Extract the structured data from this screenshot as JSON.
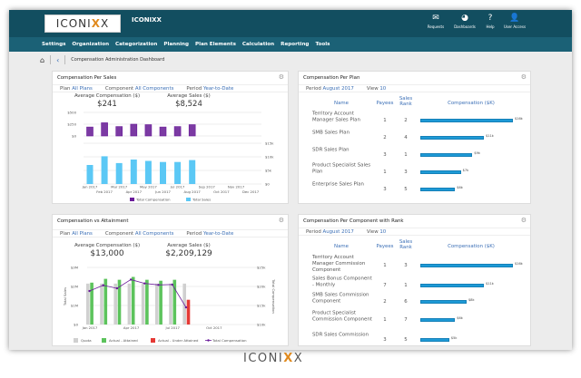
{
  "header": {
    "logo_text": "ICONIXX",
    "app_title": "ICONIXX",
    "icons": [
      {
        "name": "requests",
        "label": "Requests",
        "glyph": "✉"
      },
      {
        "name": "dashboards",
        "label": "Dashboards",
        "glyph": "◕"
      },
      {
        "name": "help",
        "label": "Help",
        "glyph": "?"
      },
      {
        "name": "user-access",
        "label": "User Access",
        "glyph": "👤"
      }
    ]
  },
  "nav": [
    "Settings",
    "Organization",
    "Categorization",
    "Planning",
    "Plan Elements",
    "Calculation",
    "Reporting",
    "Tools"
  ],
  "breadcrumb": {
    "title": "Compensation Administration Dashboard"
  },
  "panel_sales": {
    "title": "Compensation Per Sales",
    "plan_label": "Plan",
    "plan": "All Plans",
    "component_label": "Component",
    "component": "All Components",
    "period_label": "Period",
    "period": "Year-to-Date",
    "avg_comp_label": "Average Compensation ($)",
    "avg_comp": "$241",
    "avg_sales_label": "Average Sales ($)",
    "avg_sales": "$8,524"
  },
  "panel_plan": {
    "title": "Compensation Per Plan",
    "period_label": "Period",
    "period": "August 2017",
    "view_label": "View",
    "view": "10",
    "columns": [
      "Name",
      "Payees",
      "Sales Rank",
      "Compensation ($K)"
    ],
    "rows": [
      {
        "name": "Territory Account Manager Sales Plan",
        "payees": "1",
        "rank": "2",
        "comp": 16,
        "label": "$16k"
      },
      {
        "name": "SMB Sales Plan",
        "payees": "2",
        "rank": "4",
        "comp": 11,
        "label": "$11k"
      },
      {
        "name": "SDR Sales Plan",
        "payees": "3",
        "rank": "1",
        "comp": 9,
        "label": "$9k"
      },
      {
        "name": "Product Specialist Sales Plan",
        "payees": "1",
        "rank": "3",
        "comp": 7,
        "label": "$7k"
      },
      {
        "name": "Enterprise Sales Plan",
        "payees": "3",
        "rank": "5",
        "comp": 6,
        "label": "$6k"
      }
    ]
  },
  "panel_attain": {
    "title": "Compensation vs Attainment",
    "plan_label": "Plan",
    "plan": "All Plans",
    "component_label": "Component",
    "component": "All Components",
    "period_label": "Period",
    "period": "Year-to-Date",
    "avg_comp_label": "Average Compensation ($)",
    "avg_comp": "$13,000",
    "avg_sales_label": "Average Sales ($)",
    "avg_sales": "$2,209,129"
  },
  "panel_component": {
    "title": "Compensation Per Component with Rank",
    "period_label": "Period",
    "period": "August 2017",
    "view_label": "View",
    "view": "10",
    "columns": [
      "Name",
      "Payees",
      "Sales Rank",
      "Compensation ($K)"
    ],
    "rows": [
      {
        "name": "Territory Account Manager Commission Component",
        "payees": "1",
        "rank": "3",
        "comp": 16,
        "label": "$16k"
      },
      {
        "name": "Sales Bonus Component - Monthly",
        "payees": "7",
        "rank": "1",
        "comp": 11,
        "label": "$11k"
      },
      {
        "name": "SMB Sales Commission Component",
        "payees": "2",
        "rank": "6",
        "comp": 8,
        "label": "$8k"
      },
      {
        "name": "Product Specialist Commission Component",
        "payees": "1",
        "rank": "7",
        "comp": 6,
        "label": "$6k"
      },
      {
        "name": "SDR Sales Commission",
        "payees": "3",
        "rank": "5",
        "comp": 5,
        "label": "$5k"
      }
    ]
  },
  "footer": {
    "logo_text": "ICONIXX"
  },
  "colors": {
    "header": "#124e60",
    "nav": "#1b6176",
    "purple": "#6a1b9a",
    "lightblue": "#5bc8f5",
    "green": "#5cc35c",
    "red": "#e53935",
    "quota": "#d0d0d0",
    "bar": "#1e9ad6"
  },
  "chart_data": [
    {
      "type": "bar",
      "categories": [
        "Jan 2017",
        "Feb 2017",
        "Mar 2017",
        "Apr 2017",
        "May 2017",
        "Jun 2017",
        "Jul 2017",
        "Aug 2017",
        "Sep 2017",
        "Oct 2017",
        "Nov 2017",
        "Dec 2017"
      ],
      "series": [
        {
          "name": "Total Compensation",
          "values": [
            190,
            280,
            200,
            250,
            240,
            190,
            200,
            240,
            null,
            null,
            null,
            null
          ],
          "ylim": [
            0,
            500
          ],
          "ticks": [
            "$0",
            "$250",
            "$500"
          ]
        },
        {
          "name": "Total Sales",
          "values": [
            7000,
            10200,
            7700,
            9000,
            8500,
            8100,
            8100,
            8800,
            null,
            null,
            null,
            null
          ],
          "ylim": [
            0,
            15000
          ],
          "ticks": [
            "$0",
            "$5k",
            "$10k",
            "$15k"
          ]
        }
      ],
      "legend": "bottom"
    },
    {
      "type": "bar",
      "categories": [
        "Jan 2017",
        "Feb 2017",
        "Mar 2017",
        "Apr 2017",
        "May 2017",
        "Jun 2017",
        "Jul 2017",
        "Aug 2017"
      ],
      "x_ticks": [
        "Jan 2017",
        "Apr 2017",
        "Jul 2017",
        "Oct 2017"
      ],
      "ylabel": "Total Sales",
      "y2label": "Total Compensation",
      "ylim": [
        0,
        3000000
      ],
      "y_ticks": [
        "$0",
        "$1M",
        "$2M",
        "$3M"
      ],
      "y2lim": [
        10000,
        25000
      ],
      "y2_ticks": [
        "$10k",
        "$15k",
        "$20k",
        "$25k"
      ],
      "series": [
        {
          "name": "Quota",
          "values": [
            2150000,
            2150000,
            2150000,
            2150000,
            2150000,
            2150000,
            2150000,
            2150000
          ]
        },
        {
          "name": "Actual - Attained",
          "values": [
            2200000,
            2400000,
            2350000,
            2500000,
            2350000,
            2300000,
            2350000,
            null
          ]
        },
        {
          "name": "Actual - Under Attained",
          "values": [
            null,
            null,
            null,
            null,
            null,
            null,
            null,
            1300000
          ]
        },
        {
          "name": "Total Compensation",
          "type": "line",
          "values": [
            18800,
            20300,
            19500,
            21800,
            20800,
            20400,
            20500,
            14500
          ]
        }
      ],
      "legend": "bottom"
    }
  ]
}
